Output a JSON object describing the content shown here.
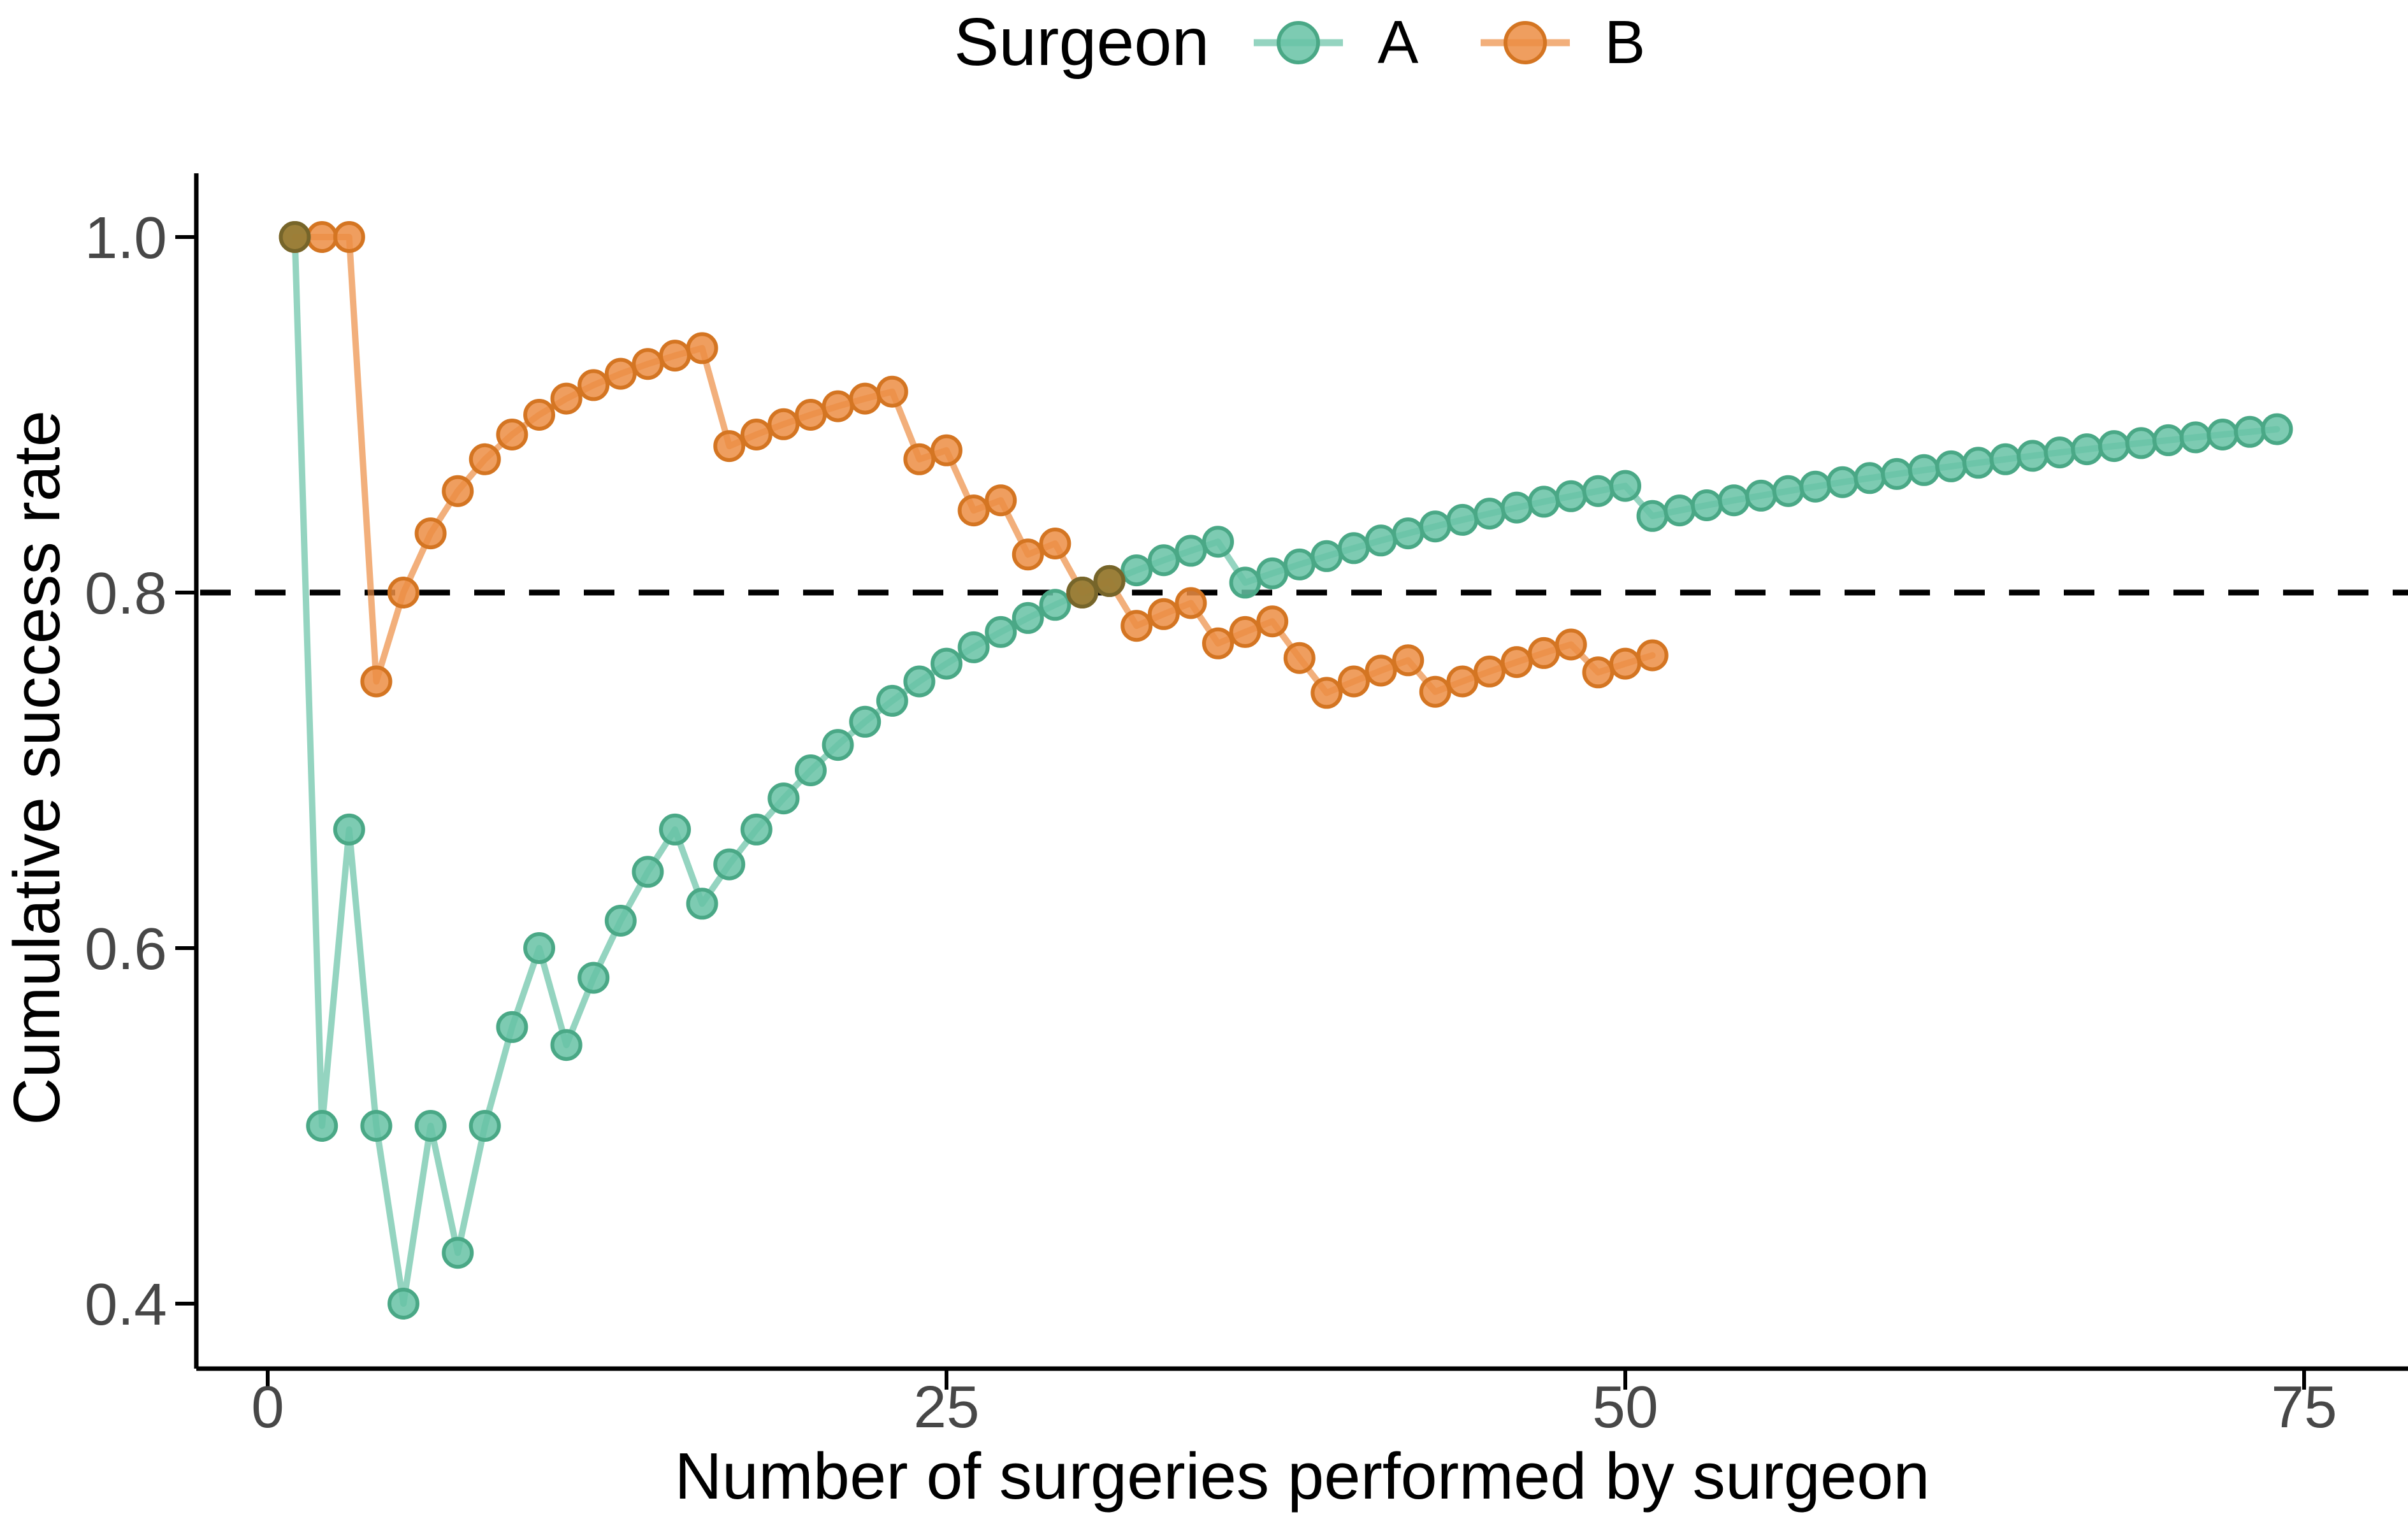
{
  "legend": {
    "title": "Surgeon",
    "entries": [
      {
        "label": "A",
        "color": "#66C2A5",
        "stroke": "#4AA886"
      },
      {
        "label": "B",
        "color": "#EC8D43",
        "stroke": "#D47522"
      }
    ]
  },
  "chart_data": {
    "type": "line",
    "xlabel": "Number of surgeries performed by surgeon",
    "ylabel": "Cumulative success rate",
    "legend_title": "Surgeon",
    "legend_position": "top",
    "grid": "off",
    "xlim": [
      0,
      78
    ],
    "ylim": [
      0.37,
      1.03
    ],
    "x_axis": {
      "ticks": [
        {
          "value": 0,
          "label": "0"
        },
        {
          "value": 25,
          "label": "25"
        },
        {
          "value": 50,
          "label": "50"
        },
        {
          "value": 75,
          "label": "75"
        }
      ]
    },
    "y_axis": {
      "ticks": [
        {
          "value": 1.0,
          "label": "1.0"
        },
        {
          "value": 0.8,
          "label": "0.8"
        },
        {
          "value": 0.6,
          "label": "0.6"
        },
        {
          "value": 0.4,
          "label": "0.4"
        }
      ]
    },
    "reference_line": {
      "y": 0.8,
      "style": "dashed",
      "color": "#000000"
    },
    "series": [
      {
        "name": "A",
        "color": "#66C2A5",
        "stroke": "#4AA886",
        "x_start": 1,
        "values": [
          1.0,
          0.5,
          0.6667,
          0.5,
          0.4,
          0.5,
          0.4286,
          0.5,
          0.5556,
          0.6,
          0.5455,
          0.5833,
          0.6154,
          0.6429,
          0.6667,
          0.625,
          0.6471,
          0.6667,
          0.6842,
          0.7,
          0.7143,
          0.7273,
          0.7391,
          0.75,
          0.76,
          0.7692,
          0.7778,
          0.7857,
          0.7931,
          0.8,
          0.8065,
          0.8125,
          0.8182,
          0.8235,
          0.8286,
          0.8056,
          0.8108,
          0.8158,
          0.8205,
          0.825,
          0.8293,
          0.8333,
          0.8372,
          0.8409,
          0.8444,
          0.8478,
          0.8511,
          0.8542,
          0.8571,
          0.86,
          0.8431,
          0.8462,
          0.8491,
          0.8519,
          0.8545,
          0.8571,
          0.8596,
          0.8621,
          0.8644,
          0.8667,
          0.8689,
          0.871,
          0.873,
          0.875,
          0.8769,
          0.8788,
          0.8806,
          0.8824,
          0.8841,
          0.8857,
          0.8873,
          0.8889,
          0.8904,
          0.8919
        ]
      },
      {
        "name": "B",
        "color": "#EC8D43",
        "stroke": "#D47522",
        "x_start": 1,
        "values": [
          1.0,
          1.0,
          1.0,
          0.75,
          0.8,
          0.8333,
          0.8571,
          0.875,
          0.8889,
          0.9,
          0.9091,
          0.9167,
          0.9231,
          0.9286,
          0.9333,
          0.9375,
          0.8824,
          0.8889,
          0.8947,
          0.9,
          0.9048,
          0.9091,
          0.913,
          0.875,
          0.88,
          0.8462,
          0.8519,
          0.8214,
          0.8276,
          0.8,
          0.8065,
          0.7813,
          0.7879,
          0.7941,
          0.7714,
          0.7778,
          0.7838,
          0.7632,
          0.7436,
          0.75,
          0.7561,
          0.7619,
          0.7442,
          0.75,
          0.7556,
          0.7609,
          0.766,
          0.7708,
          0.7551,
          0.76,
          0.7647
        ]
      }
    ],
    "overlap_points": {
      "comment_color_of_points_where_A_and_B_coincide": true,
      "color": "#8F7B35",
      "stroke": "#76652A",
      "points": [
        [
          1,
          1.0
        ],
        [
          30,
          0.8
        ],
        [
          31,
          0.8065
        ]
      ]
    },
    "colors": {
      "axis": "#000000",
      "tick_label": "#474747",
      "axis_title": "#000000",
      "background": "#FFFFFF"
    }
  }
}
